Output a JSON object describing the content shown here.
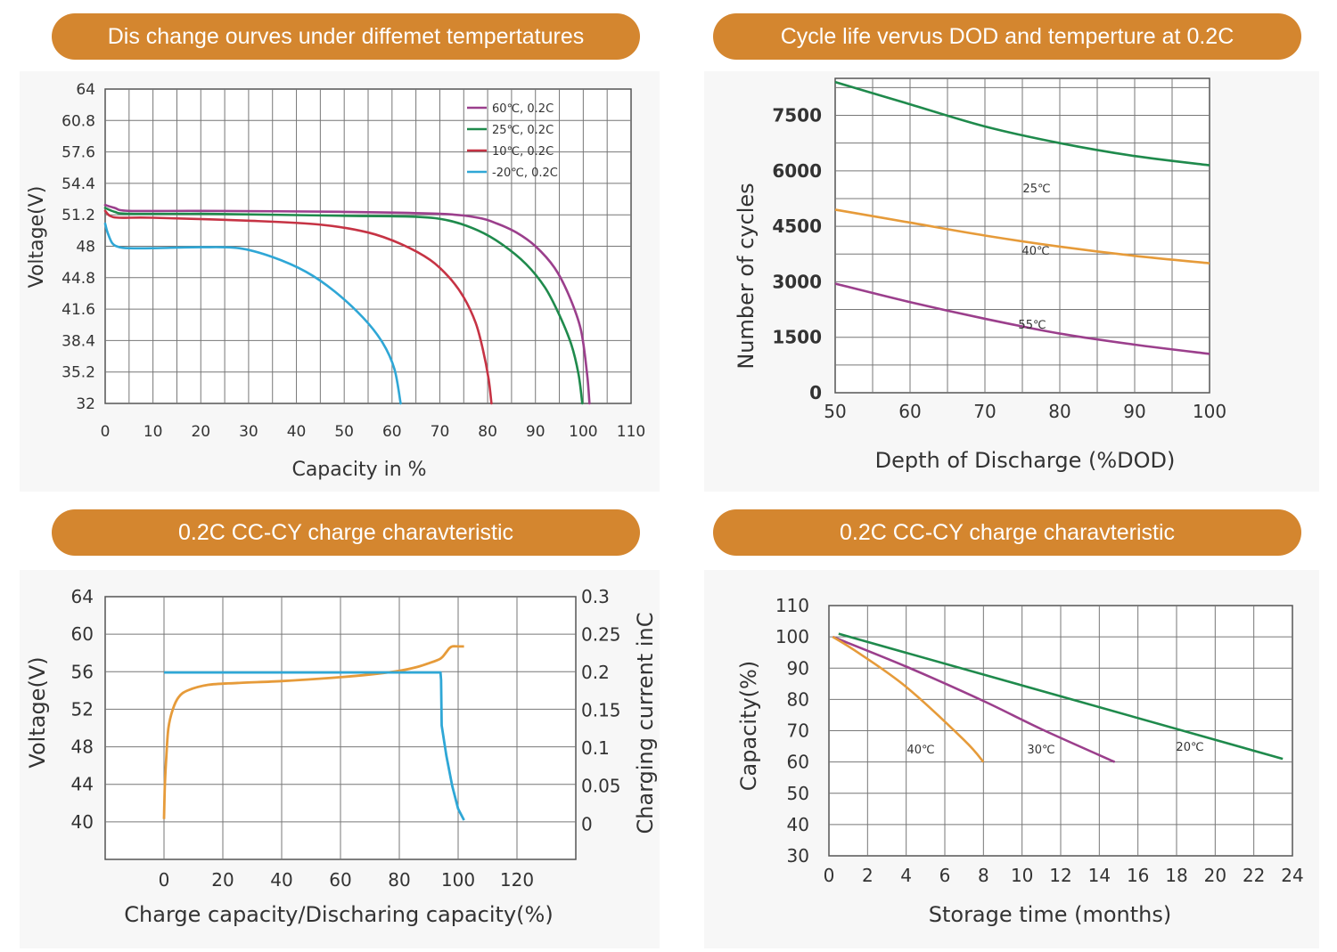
{
  "banners": [
    "Dis change ourves under diffemet tempertatures",
    "Cycle life vervus DOD and temperture at 0.2C",
    "0.2C CC-CY charge charavteristic",
    "0.2C CC-CY charge charavteristic"
  ],
  "chart_data": [
    {
      "type": "line",
      "title": "Dis change ourves under diffemet tempertatures",
      "xlabel": "Capacity in %",
      "ylabel": "Voltage(V)",
      "xlim": [
        0,
        110
      ],
      "ylim": [
        32,
        64
      ],
      "xticks": [
        "0",
        "10",
        "20",
        "30",
        "40",
        "50",
        "60",
        "70",
        "80",
        "90",
        "100",
        "110"
      ],
      "yticks": [
        "64",
        "60.8",
        "57.6",
        "54.4",
        "51.2",
        "48",
        "44.8",
        "41.6",
        "38.4",
        "35.2",
        "32"
      ],
      "grid": true,
      "legend_position": "top-right",
      "series": [
        {
          "name": "60℃, 0.2C",
          "color": "#9b3f8c",
          "x": [
            0,
            2,
            5,
            20,
            50,
            70,
            78,
            82,
            86,
            90,
            94,
            97,
            99.5,
            100.8,
            101.3
          ],
          "y": [
            52.2,
            51.9,
            51.6,
            51.6,
            51.5,
            51.3,
            50.9,
            50.3,
            49.4,
            48,
            45.8,
            43,
            39.5,
            35,
            32
          ]
        },
        {
          "name": "25℃, 0.2C",
          "color": "#1f8a4c",
          "x": [
            0,
            2,
            5,
            20,
            50,
            65,
            72,
            78,
            83,
            88,
            92,
            95,
            97.5,
            99,
            99.8
          ],
          "y": [
            51.9,
            51.5,
            51.3,
            51.3,
            51.1,
            51,
            50.6,
            49.6,
            48.2,
            46.2,
            43.8,
            41,
            38,
            35,
            32
          ]
        },
        {
          "name": "10℃, 0.2C",
          "color": "#c63344",
          "x": [
            0,
            1,
            3,
            10,
            30,
            45,
            55,
            62,
            68,
            72,
            75,
            77.5,
            79,
            80.2,
            80.8
          ],
          "y": [
            51.6,
            51.1,
            50.9,
            50.9,
            50.6,
            50.2,
            49.4,
            48.2,
            46.6,
            44.8,
            42.8,
            40.2,
            37.5,
            34.5,
            32
          ]
        },
        {
          "name": "-20℃, 0.2C",
          "color": "#2fa7d6",
          "x": [
            0,
            0.5,
            1.5,
            3,
            5,
            10,
            20,
            28,
            35,
            42,
            48,
            54,
            58,
            60.5,
            61.8
          ],
          "y": [
            50.3,
            49.4,
            48.3,
            47.9,
            47.8,
            47.8,
            47.9,
            47.8,
            46.9,
            45.4,
            43.4,
            40.7,
            38.2,
            35.5,
            32
          ]
        }
      ]
    },
    {
      "type": "line",
      "title": "Cycle life vervus DOD and temperture at 0.2C",
      "xlabel": "Depth of Discharge (%DOD)",
      "ylabel": "Number of cycles",
      "xlim": [
        50,
        100
      ],
      "ylim": [
        0,
        8500
      ],
      "xticks": [
        "50",
        "60",
        "70",
        "80",
        "90",
        "100"
      ],
      "yticks": [
        "0",
        "1500",
        "3000",
        "4500",
        "6000",
        "7500"
      ],
      "grid": true,
      "series": [
        {
          "name": "25℃",
          "color": "#1f8a4c",
          "x": [
            50,
            60,
            70,
            80,
            90,
            100
          ],
          "y": [
            8400,
            7800,
            7200,
            6750,
            6400,
            6150
          ]
        },
        {
          "name": "40℃",
          "color": "#e69b3a",
          "x": [
            50,
            60,
            70,
            80,
            90,
            100
          ],
          "y": [
            4950,
            4600,
            4250,
            3950,
            3700,
            3500
          ]
        },
        {
          "name": "55℃",
          "color": "#9b3f8c",
          "x": [
            50,
            60,
            70,
            80,
            90,
            100
          ],
          "y": [
            2950,
            2450,
            2000,
            1600,
            1300,
            1050
          ]
        }
      ],
      "annotations": [
        "25℃",
        "40℃",
        "55℃"
      ]
    },
    {
      "type": "line",
      "title": "0.2C CC-CY charge charavteristic",
      "xlabel": "Charge capacity/Discharing capacity(%)",
      "ylabel": "Voltage(V)",
      "y2label": "Charging current inC",
      "xlim": [
        -20,
        140
      ],
      "ylim": [
        36,
        64
      ],
      "y2lim": [
        -0.0467,
        0.3
      ],
      "xticks": [
        "0",
        "20",
        "40",
        "60",
        "80",
        "100",
        "120"
      ],
      "yticks": [
        "64",
        "60",
        "56",
        "52",
        "48",
        "44",
        "40"
      ],
      "y2ticks": [
        "0.3",
        "0.25",
        "0.2",
        "0.15",
        "0.1",
        "0.05",
        "0"
      ],
      "grid": true,
      "series": [
        {
          "name": "Voltage",
          "color": "#e69b3a",
          "axis": "left",
          "x": [
            0,
            0.3,
            0.8,
            1.5,
            3,
            5,
            8,
            15,
            25,
            40,
            55,
            70,
            80,
            86,
            90,
            94,
            96,
            97,
            98,
            100,
            102
          ],
          "y": [
            40.3,
            44,
            47,
            50,
            52,
            53.3,
            54,
            54.6,
            54.8,
            55,
            55.3,
            55.7,
            56.1,
            56.5,
            56.9,
            57.4,
            58.1,
            58.5,
            58.7,
            58.7,
            58.7
          ]
        },
        {
          "name": "Charging current",
          "color": "#2fa7d6",
          "axis": "right",
          "x": [
            0,
            94,
            94.2,
            94.4,
            96,
            98,
            100,
            102
          ],
          "y": [
            0.2,
            0.2,
            0.19,
            0.13,
            0.09,
            0.05,
            0.02,
            0.005
          ]
        }
      ]
    },
    {
      "type": "line",
      "title": "0.2C CC-CY charge charavteristic",
      "xlabel": "Storage time (months)",
      "ylabel": "Capacity(%)",
      "xlim": [
        0,
        24
      ],
      "ylim": [
        30,
        110
      ],
      "xticks": [
        "0",
        "2",
        "4",
        "6",
        "8",
        "10",
        "12",
        "14",
        "16",
        "18",
        "20",
        "22",
        "24"
      ],
      "yticks": [
        "110",
        "100",
        "90",
        "80",
        "70",
        "60",
        "50",
        "40",
        "30"
      ],
      "grid": true,
      "series": [
        {
          "name": "20℃",
          "color": "#1f8a4c",
          "x": [
            0.5,
            23.5
          ],
          "y": [
            101,
            61
          ]
        },
        {
          "name": "30℃",
          "color": "#9b3f8c",
          "x": [
            0.2,
            4,
            8,
            11,
            14.8
          ],
          "y": [
            100,
            90.5,
            79.5,
            70.5,
            60
          ]
        },
        {
          "name": "40℃",
          "color": "#e69b3a",
          "x": [
            0.2,
            1.5,
            4,
            7,
            8
          ],
          "y": [
            100,
            95,
            84,
            67,
            60
          ]
        }
      ],
      "annotations": [
        "40℃",
        "30℃",
        "20℃"
      ]
    }
  ]
}
